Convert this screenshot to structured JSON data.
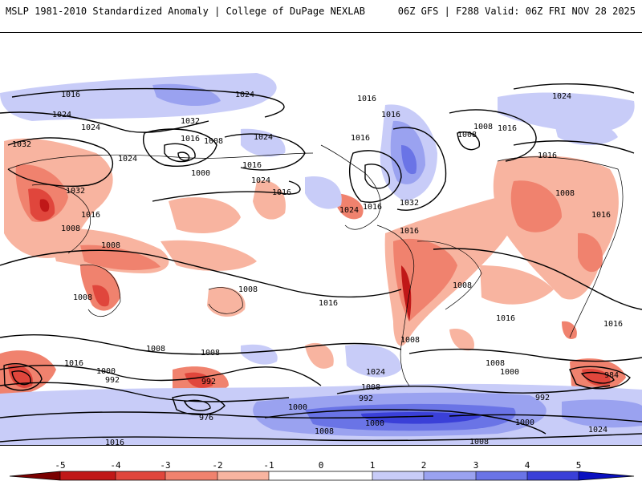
{
  "header": {
    "left": "MSLP 1981-2010 Standardized Anomaly | College of DuPage NEXLAB",
    "right": "06Z GFS | F288 Valid: 06Z FRI NOV 28 2025"
  },
  "colors": {
    "neg5": "#7a0000",
    "neg4": "#c01818",
    "neg3": "#e0463c",
    "neg2": "#f0826e",
    "neg1": "#f8b4a0",
    "zero": "#ffffff",
    "pos1": "#c8ccf8",
    "pos2": "#9aa2f0",
    "pos3": "#6a74e6",
    "pos4": "#3a40d8",
    "pos5": "#0a10c0",
    "contour": "#000000"
  },
  "colorbar": {
    "ticks": [
      "-5",
      "-4",
      "-3",
      "-2",
      "-1",
      "0",
      "1",
      "2",
      "3",
      "4",
      "5"
    ]
  },
  "isobar_labels": [
    "1016",
    "1024",
    "1016",
    "1024",
    "1024",
    "1032",
    "1016",
    "1008",
    "1024",
    "1016",
    "1024",
    "1008",
    "1016",
    "1032",
    "1024",
    "1000",
    "1016",
    "1024",
    "1032",
    "1016",
    "1032",
    "1016",
    "1008",
    "1016",
    "1008",
    "1016",
    "1016",
    "1024",
    "1016",
    "1008",
    "1008",
    "1008",
    "1008",
    "1016",
    "1016",
    "1008",
    "1016",
    "1008",
    "1016",
    "1008",
    "1000",
    "992",
    "1016",
    "1008",
    "992",
    "976",
    "1000",
    "1024",
    "1008",
    "992",
    "1008",
    "1000",
    "1000",
    "992",
    "984",
    "1016",
    "1008",
    "1000",
    "1008",
    "1000",
    "1024",
    "1008",
    "1000"
  ]
}
